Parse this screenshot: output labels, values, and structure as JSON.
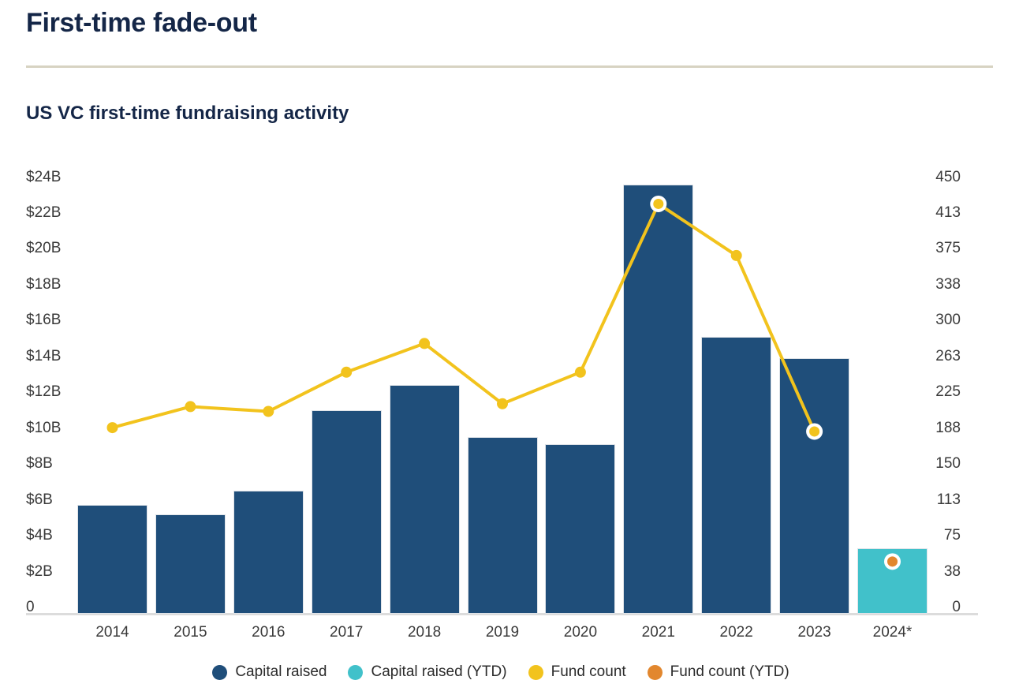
{
  "page": {
    "title": "First-time fade-out",
    "subtitle": "US VC first-time fundraising activity"
  },
  "theme": {
    "background": "#FFFFFF",
    "title_color": "#142647",
    "divider_color": "#D7D3C2",
    "axis_text_color": "#3A3A3A",
    "axis_line_color": "#DCDCDC",
    "navy": "#1F4E7A",
    "teal": "#41C1CA",
    "yellow": "#F2C31D",
    "orange": "#E2872E"
  },
  "chart_data": {
    "type": "bar+line combo",
    "title": "US VC first-time fundraising activity",
    "categories": [
      "2014",
      "2015",
      "2016",
      "2017",
      "2018",
      "2019",
      "2020",
      "2021",
      "2022",
      "2023",
      "2024*"
    ],
    "series": [
      {
        "name": "Capital raised",
        "type": "bar",
        "axis": "left",
        "color": "#1F4E7A",
        "values": [
          5.7,
          5.2,
          6.5,
          11.0,
          12.4,
          9.5,
          9.1,
          23.6,
          15.1,
          13.9,
          null
        ]
      },
      {
        "name": "Capital raised (YTD)",
        "type": "bar",
        "axis": "left",
        "color": "#41C1CA",
        "values": [
          null,
          null,
          null,
          null,
          null,
          null,
          null,
          null,
          null,
          null,
          3.3
        ]
      },
      {
        "name": "Fund count",
        "type": "line",
        "axis": "right",
        "color": "#F2C31D",
        "values": [
          188,
          210,
          205,
          246,
          276,
          213,
          246,
          422,
          368,
          184,
          null
        ]
      },
      {
        "name": "Fund count (YTD)",
        "type": "point",
        "axis": "right",
        "color": "#E2872E",
        "values": [
          null,
          null,
          null,
          null,
          null,
          null,
          null,
          null,
          null,
          null,
          48
        ]
      }
    ],
    "left_axis": {
      "min": 0,
      "max": 24,
      "tick_labels": [
        "$24B",
        "$22B",
        "$20B",
        "$18B",
        "$16B",
        "$14B",
        "$12B",
        "$10B",
        "$8B",
        "$6B",
        "$4B",
        "$2B",
        "0"
      ],
      "tick_values": [
        24,
        22,
        20,
        18,
        16,
        14,
        12,
        10,
        8,
        6,
        4,
        2,
        0
      ]
    },
    "right_axis": {
      "min": 0,
      "max": 450,
      "tick_labels": [
        "450",
        "413",
        "375",
        "338",
        "300",
        "263",
        "225",
        "188",
        "150",
        "113",
        "75",
        "38",
        "0"
      ],
      "tick_values": [
        450,
        412.5,
        375,
        337.5,
        300,
        262.5,
        225,
        187.5,
        150,
        112.5,
        75,
        37.5,
        0
      ]
    },
    "legend": [
      {
        "label": "Capital raised",
        "color": "#1F4E7A"
      },
      {
        "label": "Capital raised (YTD)",
        "color": "#41C1CA"
      },
      {
        "label": "Fund count",
        "color": "#F2C31D"
      },
      {
        "label": "Fund count (YTD)",
        "color": "#E2872E"
      }
    ],
    "grid": false,
    "legend_position": "bottom"
  }
}
